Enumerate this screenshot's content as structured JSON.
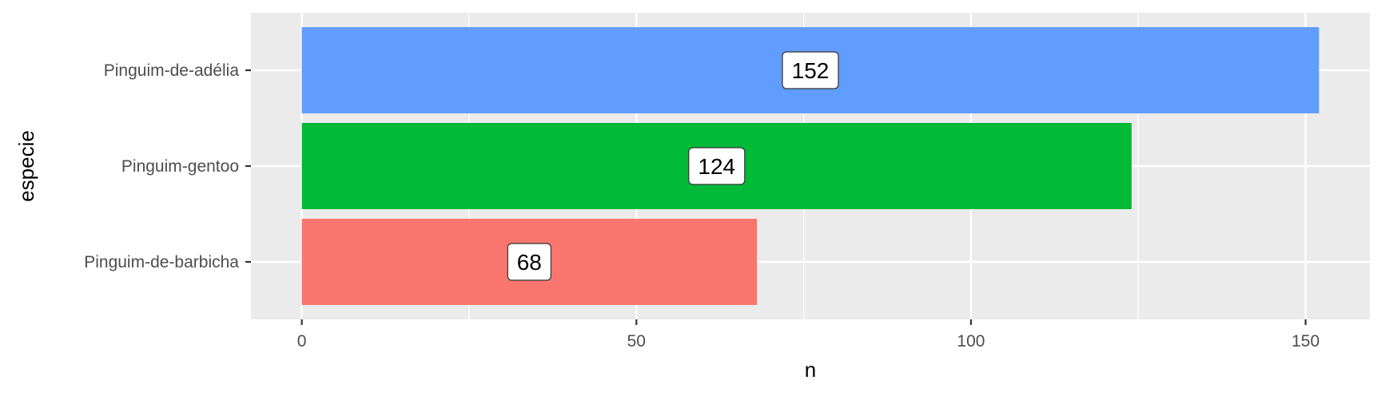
{
  "chart_data": {
    "type": "bar",
    "orientation": "horizontal",
    "categories": [
      "Pinguim-de-adélia",
      "Pinguim-gentoo",
      "Pinguim-de-barbicha"
    ],
    "values": [
      152,
      124,
      68
    ],
    "data_labels": [
      "152",
      "124",
      "68"
    ],
    "colors": [
      "#619CFF",
      "#00BA38",
      "#F8766D"
    ],
    "xlabel": "n",
    "ylabel": "especie",
    "xlim": [
      -7.6,
      159.6
    ],
    "xticks": [
      0,
      50,
      100,
      150
    ],
    "xtick_labels": [
      "0",
      "50",
      "100",
      "150"
    ],
    "grid": true,
    "panel_background": "#EBEBEB",
    "grid_color": "#FFFFFF",
    "legend": "none"
  }
}
